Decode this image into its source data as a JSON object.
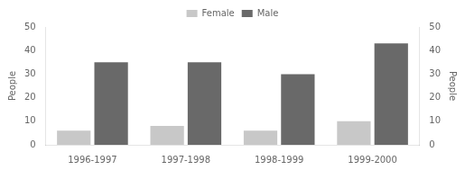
{
  "chart_data": {
    "type": "bar",
    "categories": [
      "1996-1997",
      "1997-1998",
      "1998-1999",
      "1999-2000"
    ],
    "series": [
      {
        "name": "Female",
        "color": "#c8c8c8",
        "values": [
          6,
          8,
          6,
          10
        ]
      },
      {
        "name": "Male",
        "color": "#696969",
        "values": [
          35,
          35,
          30,
          43
        ]
      }
    ],
    "y_label": "People",
    "y2_label": "People",
    "ylim": [
      0,
      50
    ],
    "yticks": [
      0,
      10,
      20,
      30,
      40,
      50
    ],
    "y2lim": [
      0,
      50
    ],
    "y2ticks": [
      0,
      10,
      20,
      30,
      40,
      50
    ],
    "grid": false,
    "legend": "top"
  }
}
